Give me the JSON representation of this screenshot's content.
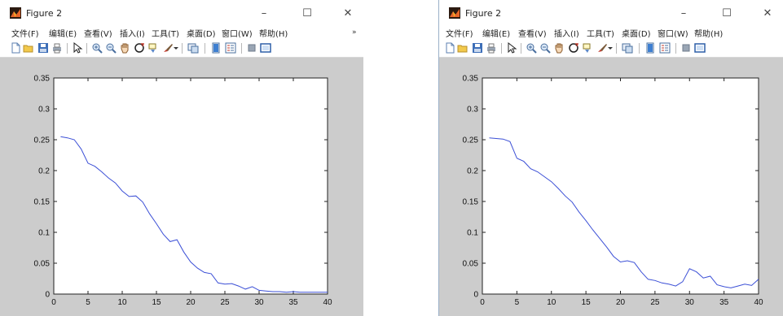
{
  "figures": [
    {
      "title": "Figure 2",
      "menu": [
        "文件(F)",
        "编辑(E)",
        "查看(V)",
        "插入(I)",
        "工具(T)",
        "桌面(D)",
        "窗口(W)",
        "帮助(H)"
      ],
      "window_controls": {
        "minimize": "–",
        "maximize": "☐",
        "close": "✕"
      },
      "overflow_arrow": "»"
    },
    {
      "title": "Figure 2",
      "menu": [
        "文件(F)",
        "编辑(E)",
        "查看(V)",
        "插入(I)",
        "工具(T)",
        "桌面(D)",
        "窗口(W)",
        "帮助(H)"
      ],
      "window_controls": {
        "minimize": "–",
        "maximize": "☐",
        "close": "✕"
      }
    }
  ],
  "toolbar_icons": [
    "new-figure-icon",
    "open-file-icon",
    "save-icon",
    "print-icon",
    "separator",
    "edit-plot-arrow-icon",
    "separator",
    "zoom-in-icon",
    "zoom-out-icon",
    "pan-hand-icon",
    "rotate-3d-icon",
    "data-cursor-icon",
    "brush-icon",
    "dropdown-arrow-icon",
    "separator",
    "link-plot-icon",
    "separator",
    "colorbar-icon",
    "legend-icon",
    "separator",
    "hide-plot-tools-icon",
    "show-plot-tools-icon"
  ],
  "colors": {
    "line": "#3b4fd6",
    "canvas_bg": "#cccccc",
    "axes_bg": "#ffffff"
  },
  "chart_data": [
    {
      "type": "line",
      "title": "",
      "xlabel": "",
      "ylabel": "",
      "xlim": [
        0,
        40
      ],
      "ylim": [
        0,
        0.35
      ],
      "xticks": [
        0,
        5,
        10,
        15,
        20,
        25,
        30,
        35,
        40
      ],
      "yticks": [
        0,
        0.05,
        0.1,
        0.15,
        0.2,
        0.25,
        0.3,
        0.35
      ],
      "ytick_labels": [
        "0",
        "0.05",
        "0.1",
        "0.15",
        "0.2",
        "0.25",
        "0.3",
        "0.35"
      ],
      "grid": false,
      "series": [
        {
          "x": [
            1,
            2,
            3,
            4,
            5,
            6,
            7,
            8,
            9,
            10,
            11,
            12,
            13,
            14,
            15,
            16,
            17,
            18,
            19,
            20,
            21,
            22,
            23,
            24,
            25,
            26,
            27,
            28,
            29,
            30,
            31,
            32,
            33,
            34,
            35,
            36,
            37,
            38,
            39,
            40
          ],
          "y": [
            0.255,
            0.253,
            0.25,
            0.235,
            0.212,
            0.207,
            0.198,
            0.188,
            0.18,
            0.167,
            0.158,
            0.159,
            0.149,
            0.13,
            0.114,
            0.097,
            0.085,
            0.088,
            0.068,
            0.052,
            0.042,
            0.035,
            0.033,
            0.018,
            0.016,
            0.017,
            0.013,
            0.008,
            0.012,
            0.006,
            0.005,
            0.004,
            0.004,
            0.003,
            0.004,
            0.003,
            0.003,
            0.003,
            0.003,
            0.003
          ]
        }
      ]
    },
    {
      "type": "line",
      "title": "",
      "xlabel": "",
      "ylabel": "",
      "xlim": [
        0,
        40
      ],
      "ylim": [
        0,
        0.35
      ],
      "xticks": [
        0,
        5,
        10,
        15,
        20,
        25,
        30,
        35,
        40
      ],
      "yticks": [
        0,
        0.05,
        0.1,
        0.15,
        0.2,
        0.25,
        0.3,
        0.35
      ],
      "ytick_labels": [
        "0",
        "0.05",
        "0.1",
        "0.15",
        "0.2",
        "0.25",
        "0.3",
        "0.35"
      ],
      "grid": false,
      "series": [
        {
          "x": [
            1,
            2,
            3,
            4,
            5,
            6,
            7,
            8,
            9,
            10,
            11,
            12,
            13,
            14,
            15,
            16,
            17,
            18,
            19,
            20,
            21,
            22,
            23,
            24,
            25,
            26,
            27,
            28,
            29,
            30,
            31,
            32,
            33,
            34,
            35,
            36,
            37,
            38,
            39,
            40
          ],
          "y": [
            0.253,
            0.252,
            0.251,
            0.247,
            0.22,
            0.215,
            0.203,
            0.198,
            0.19,
            0.182,
            0.171,
            0.159,
            0.149,
            0.133,
            0.119,
            0.104,
            0.09,
            0.076,
            0.061,
            0.052,
            0.054,
            0.051,
            0.036,
            0.024,
            0.022,
            0.018,
            0.016,
            0.013,
            0.02,
            0.041,
            0.036,
            0.026,
            0.029,
            0.015,
            0.012,
            0.01,
            0.013,
            0.016,
            0.014,
            0.024
          ]
        }
      ]
    }
  ]
}
